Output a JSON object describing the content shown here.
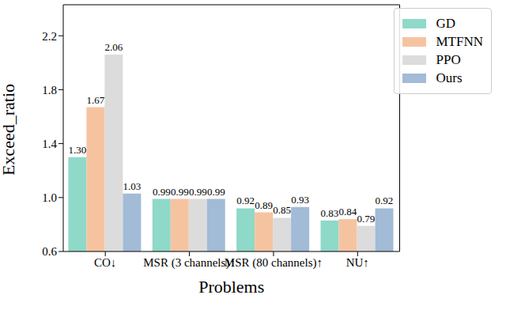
{
  "chart_data": {
    "type": "bar",
    "x_label": "Problems",
    "y_label": "Exceed_ratio",
    "categories": [
      "CO↓",
      "MSR (3 channels)↑",
      "MSR (80 channels)↑",
      "NU↑"
    ],
    "series": [
      {
        "name": "GD",
        "color": "#8fd9c8",
        "values": [
          1.3,
          0.99,
          0.92,
          0.83
        ],
        "value_labels": [
          "1.30",
          "0.99",
          "0.92",
          "0.83"
        ]
      },
      {
        "name": "MTFNN",
        "color": "#f6c3a0",
        "values": [
          1.67,
          0.99,
          0.89,
          0.84
        ],
        "value_labels": [
          "1.67",
          "0.99",
          "0.89",
          "0.84"
        ]
      },
      {
        "name": "PPO",
        "color": "#dcdcdc",
        "values": [
          2.06,
          0.99,
          0.85,
          0.79
        ],
        "value_labels": [
          "2.06",
          "0.99",
          "0.85",
          "0.79"
        ]
      },
      {
        "name": "Ours",
        "color": "#a2bbd6",
        "values": [
          1.03,
          0.99,
          0.93,
          0.92
        ],
        "value_labels": [
          "1.03",
          "0.99",
          "0.93",
          "0.92"
        ]
      }
    ],
    "ylim": [
      0.6,
      2.43
    ],
    "yticks": [
      0.6,
      {
        "value": 1,
        "label": "1.0"
      },
      1.4,
      1.8,
      2.2
    ],
    "data_labels": true,
    "legend": "upper right",
    "grid": false
  }
}
